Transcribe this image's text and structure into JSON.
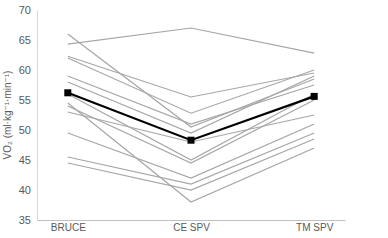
{
  "chart_data": {
    "type": "line",
    "y_label": "VO₂ (ml·kg⁻¹·min⁻¹)",
    "categories": [
      "BRUCE",
      "CE SPV",
      "TM SPV"
    ],
    "series": [
      {
        "color": "#a6a6a6",
        "values": [
          64.3,
          67,
          62.8
        ]
      },
      {
        "color": "#a6a6a6",
        "values": [
          66,
          50.5,
          58.5
        ]
      },
      {
        "color": "#a6a6a6",
        "values": [
          62.3,
          55.5,
          59.5
        ]
      },
      {
        "color": "#a6a6a6",
        "values": [
          62,
          52.8,
          60
        ]
      },
      {
        "color": "#a6a6a6",
        "values": [
          59,
          51,
          57.5
        ]
      },
      {
        "color": "#a6a6a6",
        "values": [
          58,
          49.5,
          59
        ]
      },
      {
        "color": "#a6a6a6",
        "values": [
          56,
          45,
          56
        ]
      },
      {
        "color": "#a6a6a6",
        "values": [
          54,
          44.5,
          55
        ]
      },
      {
        "color": "#a6a6a6",
        "values": [
          53,
          48,
          52.5
        ]
      },
      {
        "color": "#a6a6a6",
        "values": [
          49.5,
          42,
          51
        ]
      },
      {
        "color": "#a6a6a6",
        "values": [
          45.5,
          41,
          49.5
        ]
      },
      {
        "color": "#a6a6a6",
        "values": [
          44.5,
          40,
          48.5
        ]
      },
      {
        "color": "#a6a6a6",
        "values": [
          54.5,
          38,
          47
        ]
      },
      {
        "color": "#000000",
        "marker": "square",
        "values": [
          56.2,
          48.3,
          55.6
        ]
      }
    ],
    "ylim": [
      35,
      70
    ],
    "yticks": [
      35,
      40,
      45,
      50,
      55,
      60,
      65,
      70
    ],
    "grid": false
  }
}
